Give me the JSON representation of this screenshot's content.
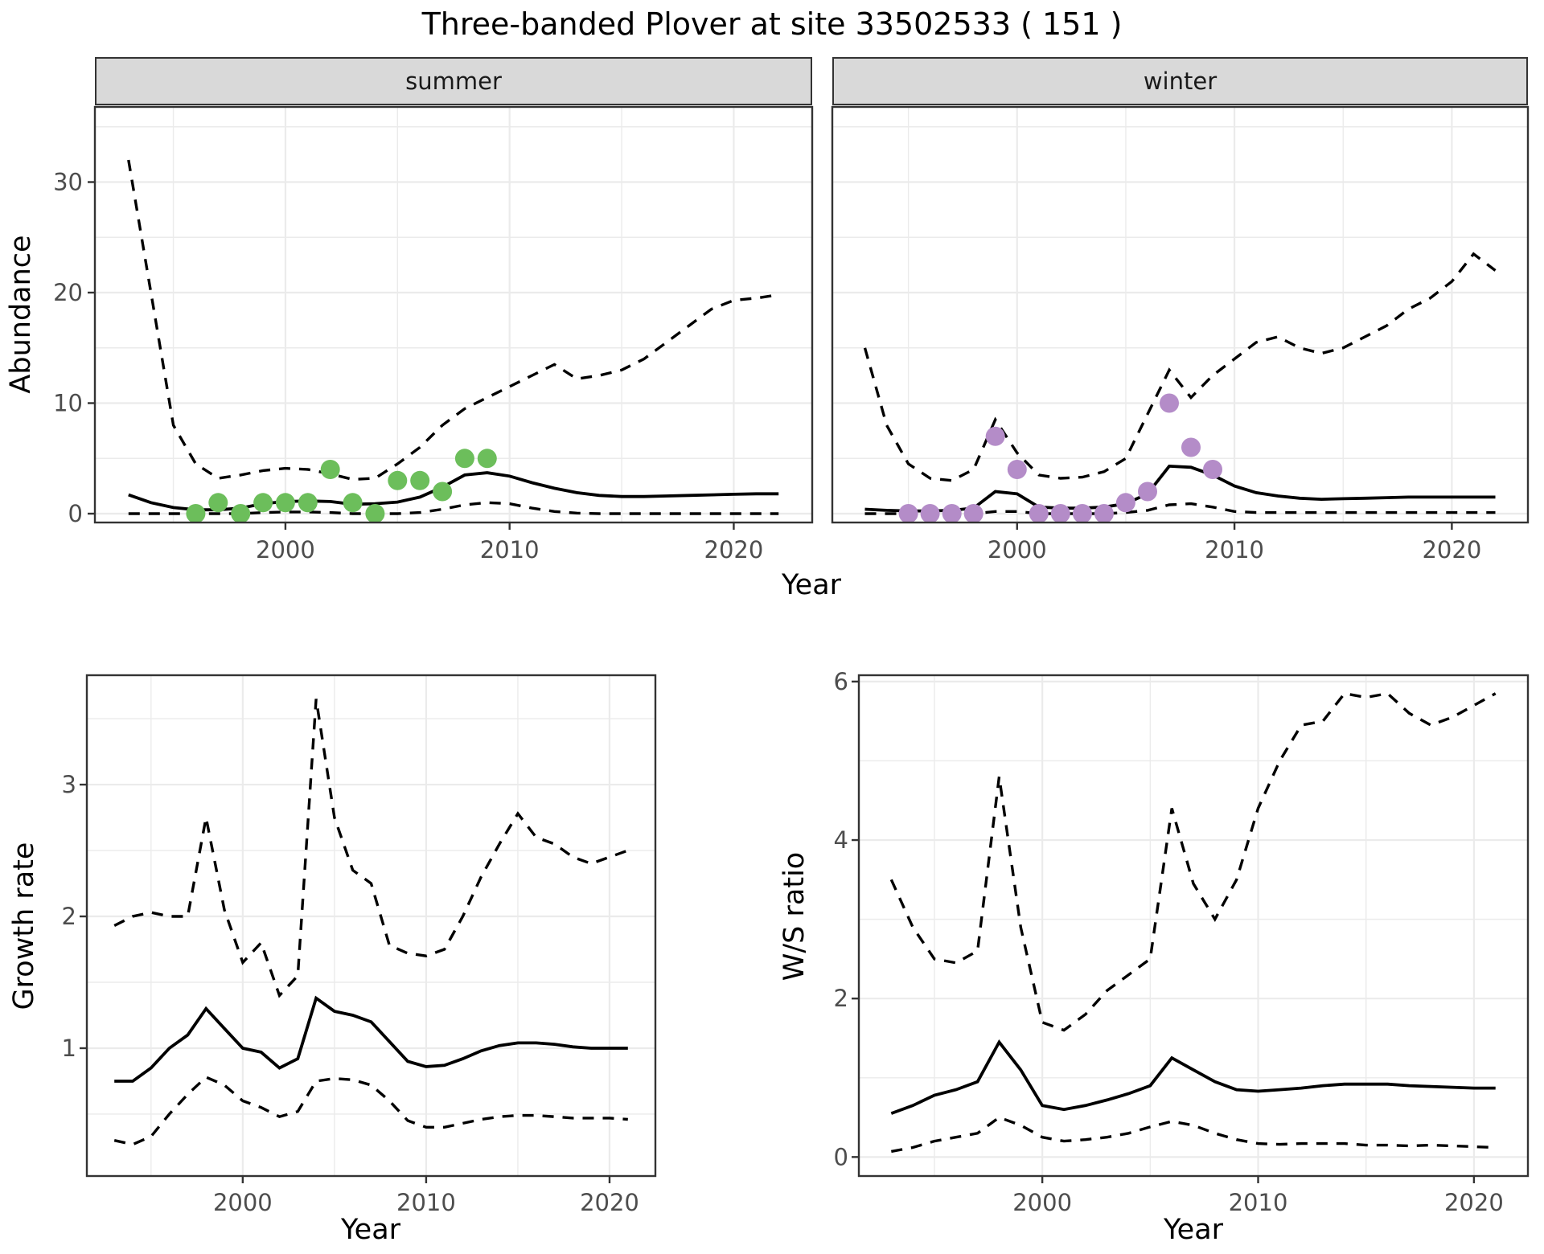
{
  "title": "Three-banded Plover at site 33502533 ( 151 )",
  "colors": {
    "summer_points": "#6cbe5b",
    "winter_points": "#b48cc8",
    "line": "#000000",
    "grid": "#ebebeb",
    "panel_border": "#333333",
    "strip_bg": "#d9d9d9",
    "tick_text": "#4d4d4d"
  },
  "labels": {
    "abundance_ylabel": "Abundance",
    "growth_ylabel": "Growth rate",
    "ws_ylabel": "W/S ratio",
    "top_xlabel": "Year",
    "growth_xlabel": "Year",
    "ws_xlabel": "Year"
  },
  "chart_data": [
    {
      "id": "abundance_summer",
      "type": "line",
      "facet": "summer",
      "ylabel": "Abundance",
      "xlabel": "Year",
      "xlim": [
        1991.5,
        2023.5
      ],
      "ylim": [
        -0.8,
        36.8
      ],
      "xticks": [
        2000,
        2010,
        2020
      ],
      "xminor": [
        1995,
        2005,
        2015
      ],
      "yticks": [
        0,
        10,
        20,
        30
      ],
      "yminor": [
        5,
        15,
        25,
        35
      ],
      "x": [
        1993,
        1994,
        1995,
        1996,
        1997,
        1998,
        1999,
        2000,
        2001,
        2002,
        2003,
        2004,
        2005,
        2006,
        2007,
        2008,
        2009,
        2010,
        2011,
        2012,
        2013,
        2014,
        2015,
        2016,
        2017,
        2018,
        2019,
        2020,
        2021,
        2022
      ],
      "series": [
        {
          "name": "upper_ci",
          "style": "dashed",
          "values": [
            32,
            20,
            8,
            4.5,
            3.2,
            3.5,
            3.9,
            4.1,
            4.0,
            3.6,
            3.1,
            3.2,
            4.5,
            6.0,
            8.0,
            9.5,
            10.5,
            11.5,
            12.5,
            13.5,
            12.2,
            12.5,
            13.0,
            14.0,
            15.5,
            17.0,
            18.5,
            19.3,
            19.5,
            19.8
          ]
        },
        {
          "name": "median",
          "style": "solid",
          "values": [
            1.7,
            1.0,
            0.55,
            0.35,
            0.35,
            0.5,
            0.9,
            1.1,
            1.15,
            1.1,
            0.85,
            0.9,
            1.05,
            1.5,
            2.4,
            3.5,
            3.7,
            3.4,
            2.8,
            2.3,
            1.9,
            1.65,
            1.55,
            1.55,
            1.6,
            1.65,
            1.7,
            1.75,
            1.8,
            1.8
          ]
        },
        {
          "name": "lower_ci",
          "style": "dashed",
          "values": [
            0,
            0,
            0,
            0,
            0,
            0,
            0.1,
            0.15,
            0.15,
            0.1,
            0,
            0,
            0,
            0.1,
            0.4,
            0.8,
            1.0,
            0.9,
            0.5,
            0.2,
            0.05,
            0,
            0,
            0,
            0,
            0,
            0,
            0,
            0,
            0
          ]
        }
      ],
      "points": {
        "name": "observed_counts",
        "color": "#6cbe5b",
        "x": [
          1996,
          1997,
          1998,
          1999,
          2000,
          2001,
          2002,
          2003,
          2004,
          2005,
          2006,
          2007,
          2008,
          2009
        ],
        "y": [
          0,
          1,
          0,
          1,
          1,
          1,
          4,
          1,
          0,
          3,
          3,
          2,
          5,
          5
        ]
      }
    },
    {
      "id": "abundance_winter",
      "type": "line",
      "facet": "winter",
      "ylabel": "Abundance",
      "xlabel": "Year",
      "xlim": [
        1991.5,
        2023.5
      ],
      "ylim": [
        -0.8,
        36.8
      ],
      "xticks": [
        2000,
        2010,
        2020
      ],
      "xminor": [
        1995,
        2005,
        2015
      ],
      "yticks": [
        0,
        10,
        20,
        30
      ],
      "yminor": [
        5,
        15,
        25,
        35
      ],
      "x": [
        1993,
        1994,
        1995,
        1996,
        1997,
        1998,
        1999,
        2000,
        2001,
        2002,
        2003,
        2004,
        2005,
        2006,
        2007,
        2008,
        2009,
        2010,
        2011,
        2012,
        2013,
        2014,
        2015,
        2016,
        2017,
        2018,
        2019,
        2020,
        2021,
        2022
      ],
      "series": [
        {
          "name": "upper_ci",
          "style": "dashed",
          "values": [
            15,
            8,
            4.5,
            3.2,
            3.0,
            4.0,
            8.5,
            5.5,
            3.5,
            3.2,
            3.3,
            3.8,
            5.0,
            9.0,
            13.0,
            10.5,
            12.5,
            14.0,
            15.5,
            16.0,
            15.0,
            14.5,
            15.0,
            16.0,
            17.0,
            18.5,
            19.5,
            21.0,
            23.5,
            22.0
          ]
        },
        {
          "name": "median",
          "style": "solid",
          "values": [
            0.4,
            0.3,
            0.25,
            0.25,
            0.3,
            0.5,
            2.0,
            1.8,
            0.6,
            0.5,
            0.5,
            0.6,
            0.9,
            1.8,
            4.3,
            4.2,
            3.5,
            2.5,
            1.9,
            1.6,
            1.4,
            1.3,
            1.35,
            1.4,
            1.45,
            1.5,
            1.5,
            1.5,
            1.5,
            1.5
          ]
        },
        {
          "name": "lower_ci",
          "style": "dashed",
          "values": [
            0,
            0,
            0,
            0,
            0,
            0,
            0.2,
            0.2,
            0,
            0,
            0,
            0,
            0.1,
            0.3,
            0.8,
            0.9,
            0.6,
            0.2,
            0.1,
            0.1,
            0.1,
            0.1,
            0.1,
            0.1,
            0.1,
            0.1,
            0.1,
            0.1,
            0.1,
            0.1
          ]
        }
      ],
      "points": {
        "name": "observed_counts",
        "color": "#b48cc8",
        "x": [
          1995,
          1996,
          1997,
          1998,
          1999,
          2000,
          2001,
          2002,
          2003,
          2004,
          2005,
          2006,
          2007,
          2008,
          2009
        ],
        "y": [
          0,
          0,
          0,
          0,
          7,
          4,
          0,
          0,
          0,
          0,
          1,
          2,
          10,
          6,
          4
        ]
      }
    },
    {
      "id": "growth_rate",
      "type": "line",
      "facet": null,
      "ylabel": "Growth rate",
      "xlabel": "Year",
      "xlim": [
        1991.5,
        2022.5
      ],
      "ylim": [
        0.03,
        3.83
      ],
      "xticks": [
        2000,
        2010,
        2020
      ],
      "xminor": [
        1995,
        2005,
        2015
      ],
      "yticks": [
        1,
        2,
        3
      ],
      "yminor": [
        0.5,
        1.5,
        2.5,
        3.5
      ],
      "x": [
        1993,
        1994,
        1995,
        1996,
        1997,
        1998,
        1999,
        2000,
        2001,
        2002,
        2003,
        2004,
        2005,
        2006,
        2007,
        2008,
        2009,
        2010,
        2011,
        2012,
        2013,
        2014,
        2015,
        2016,
        2017,
        2018,
        2019,
        2020,
        2021
      ],
      "series": [
        {
          "name": "upper_ci",
          "style": "dashed",
          "values": [
            1.93,
            2.0,
            2.03,
            2.0,
            2.0,
            2.75,
            2.05,
            1.65,
            1.8,
            1.4,
            1.55,
            3.65,
            2.75,
            2.35,
            2.25,
            1.78,
            1.72,
            1.7,
            1.75,
            2.0,
            2.3,
            2.55,
            2.78,
            2.6,
            2.55,
            2.45,
            2.4,
            2.45,
            2.5
          ]
        },
        {
          "name": "median",
          "style": "solid",
          "values": [
            0.75,
            0.75,
            0.85,
            1.0,
            1.1,
            1.3,
            1.15,
            1.0,
            0.97,
            0.85,
            0.92,
            1.38,
            1.28,
            1.25,
            1.2,
            1.05,
            0.9,
            0.86,
            0.87,
            0.92,
            0.98,
            1.02,
            1.04,
            1.04,
            1.03,
            1.01,
            1.0,
            1.0,
            1.0
          ]
        },
        {
          "name": "lower_ci",
          "style": "dashed",
          "values": [
            0.3,
            0.27,
            0.33,
            0.5,
            0.65,
            0.78,
            0.72,
            0.6,
            0.55,
            0.48,
            0.52,
            0.75,
            0.77,
            0.76,
            0.72,
            0.6,
            0.45,
            0.4,
            0.4,
            0.43,
            0.46,
            0.48,
            0.49,
            0.49,
            0.48,
            0.47,
            0.47,
            0.47,
            0.46
          ]
        }
      ],
      "points": null
    },
    {
      "id": "ws_ratio",
      "type": "line",
      "facet": null,
      "ylabel": "W/S ratio",
      "xlabel": "Year",
      "xlim": [
        1991.5,
        2022.5
      ],
      "ylim": [
        -0.24,
        6.08
      ],
      "xticks": [
        2000,
        2010,
        2020
      ],
      "xminor": [
        1995,
        2005,
        2015
      ],
      "yticks": [
        0,
        2,
        4,
        6
      ],
      "yminor": [
        1,
        3,
        5
      ],
      "x": [
        1993,
        1994,
        1995,
        1996,
        1997,
        1998,
        1999,
        2000,
        2001,
        2002,
        2003,
        2004,
        2005,
        2006,
        2007,
        2008,
        2009,
        2010,
        2011,
        2012,
        2013,
        2014,
        2015,
        2016,
        2017,
        2018,
        2019,
        2020,
        2021
      ],
      "series": [
        {
          "name": "upper_ci",
          "style": "dashed",
          "values": [
            3.5,
            2.9,
            2.5,
            2.45,
            2.6,
            4.8,
            2.9,
            1.7,
            1.6,
            1.8,
            2.1,
            2.3,
            2.5,
            4.4,
            3.45,
            3.0,
            3.5,
            4.4,
            5.0,
            5.45,
            5.5,
            5.85,
            5.8,
            5.85,
            5.6,
            5.45,
            5.55,
            5.7,
            5.85
          ]
        },
        {
          "name": "median",
          "style": "solid",
          "values": [
            0.55,
            0.65,
            0.78,
            0.85,
            0.95,
            1.45,
            1.1,
            0.65,
            0.6,
            0.65,
            0.72,
            0.8,
            0.9,
            1.25,
            1.1,
            0.95,
            0.85,
            0.83,
            0.85,
            0.87,
            0.9,
            0.92,
            0.92,
            0.92,
            0.9,
            0.89,
            0.88,
            0.87,
            0.87
          ]
        },
        {
          "name": "lower_ci",
          "style": "dashed",
          "values": [
            0.07,
            0.12,
            0.2,
            0.25,
            0.3,
            0.5,
            0.4,
            0.25,
            0.2,
            0.22,
            0.25,
            0.3,
            0.38,
            0.45,
            0.4,
            0.3,
            0.22,
            0.17,
            0.16,
            0.17,
            0.17,
            0.17,
            0.15,
            0.15,
            0.14,
            0.15,
            0.14,
            0.13,
            0.12
          ]
        }
      ],
      "points": null
    }
  ]
}
